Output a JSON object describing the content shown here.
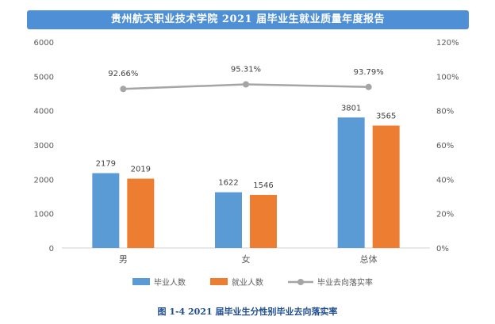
{
  "header": {
    "title": "贵州航天职业技术学院 2021 届毕业生就业质量年度报告",
    "background_color": "#4f8fd6"
  },
  "caption": "图 1-4 2021 届毕业生分性别毕业去向落实率",
  "chart_data": {
    "type": "bar",
    "categories": [
      "男",
      "女",
      "总体"
    ],
    "series": [
      {
        "name": "毕业人数",
        "kind": "bar",
        "axis": "left",
        "color": "#5b9bd5",
        "values": [
          2179,
          1622,
          3801
        ]
      },
      {
        "name": "就业人数",
        "kind": "bar",
        "axis": "left",
        "color": "#ed7d31",
        "values": [
          2019,
          1546,
          3565
        ]
      },
      {
        "name": "毕业去向落实率",
        "kind": "line",
        "axis": "right",
        "color": "#a5a5a5",
        "values": [
          92.66,
          95.31,
          93.79
        ],
        "labels": [
          "92.66%",
          "95.31%",
          "93.79%"
        ]
      }
    ],
    "ylim": [
      0,
      6000
    ],
    "yticks": [
      "0",
      "1000",
      "2000",
      "3000",
      "4000",
      "5000",
      "6000"
    ],
    "y2lim": [
      0,
      120
    ],
    "y2ticks": [
      "0%",
      "20%",
      "40%",
      "60%",
      "80%",
      "100%",
      "120%"
    ],
    "grid": false,
    "legend_position": "bottom"
  }
}
